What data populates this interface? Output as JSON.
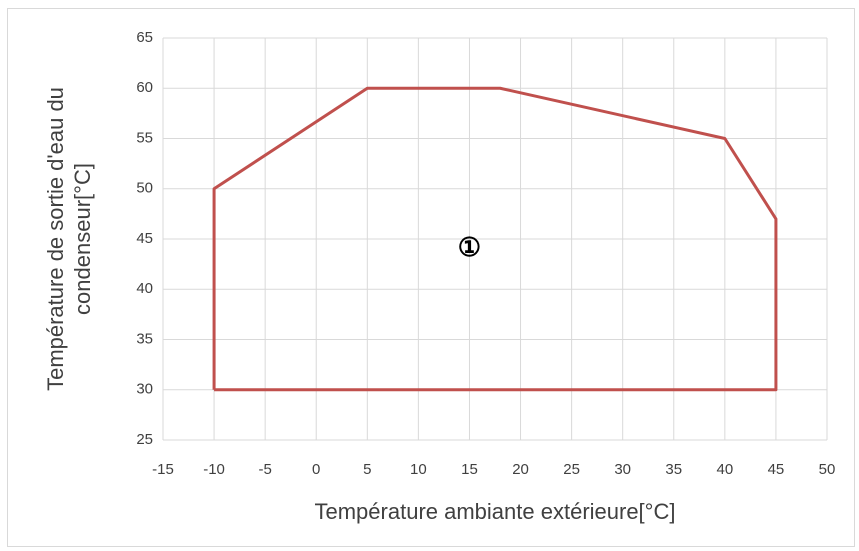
{
  "chart_data": {
    "type": "line",
    "xlabel": "Température ambiante extérieure[°C]",
    "ylabel": [
      "Température de sortie d'eau du",
      "condenseur[°C]"
    ],
    "series": [
      {
        "name": null,
        "color": "#c0504d",
        "x": [
          -10,
          -10,
          5,
          18,
          40,
          45,
          45,
          -10
        ],
        "values": [
          30,
          50,
          60,
          60,
          55,
          47,
          30,
          30
        ]
      }
    ],
    "xlim": [
      -15,
      50
    ],
    "xticks": [
      -15,
      -10,
      -5,
      0,
      5,
      10,
      15,
      20,
      25,
      30,
      35,
      40,
      45,
      50
    ],
    "ylim": [
      25,
      65
    ],
    "yticks": [
      25,
      30,
      35,
      40,
      45,
      50,
      55,
      60,
      65
    ],
    "grid": true,
    "annotations": [
      {
        "text": "①",
        "x": 15,
        "y": 44
      }
    ]
  }
}
